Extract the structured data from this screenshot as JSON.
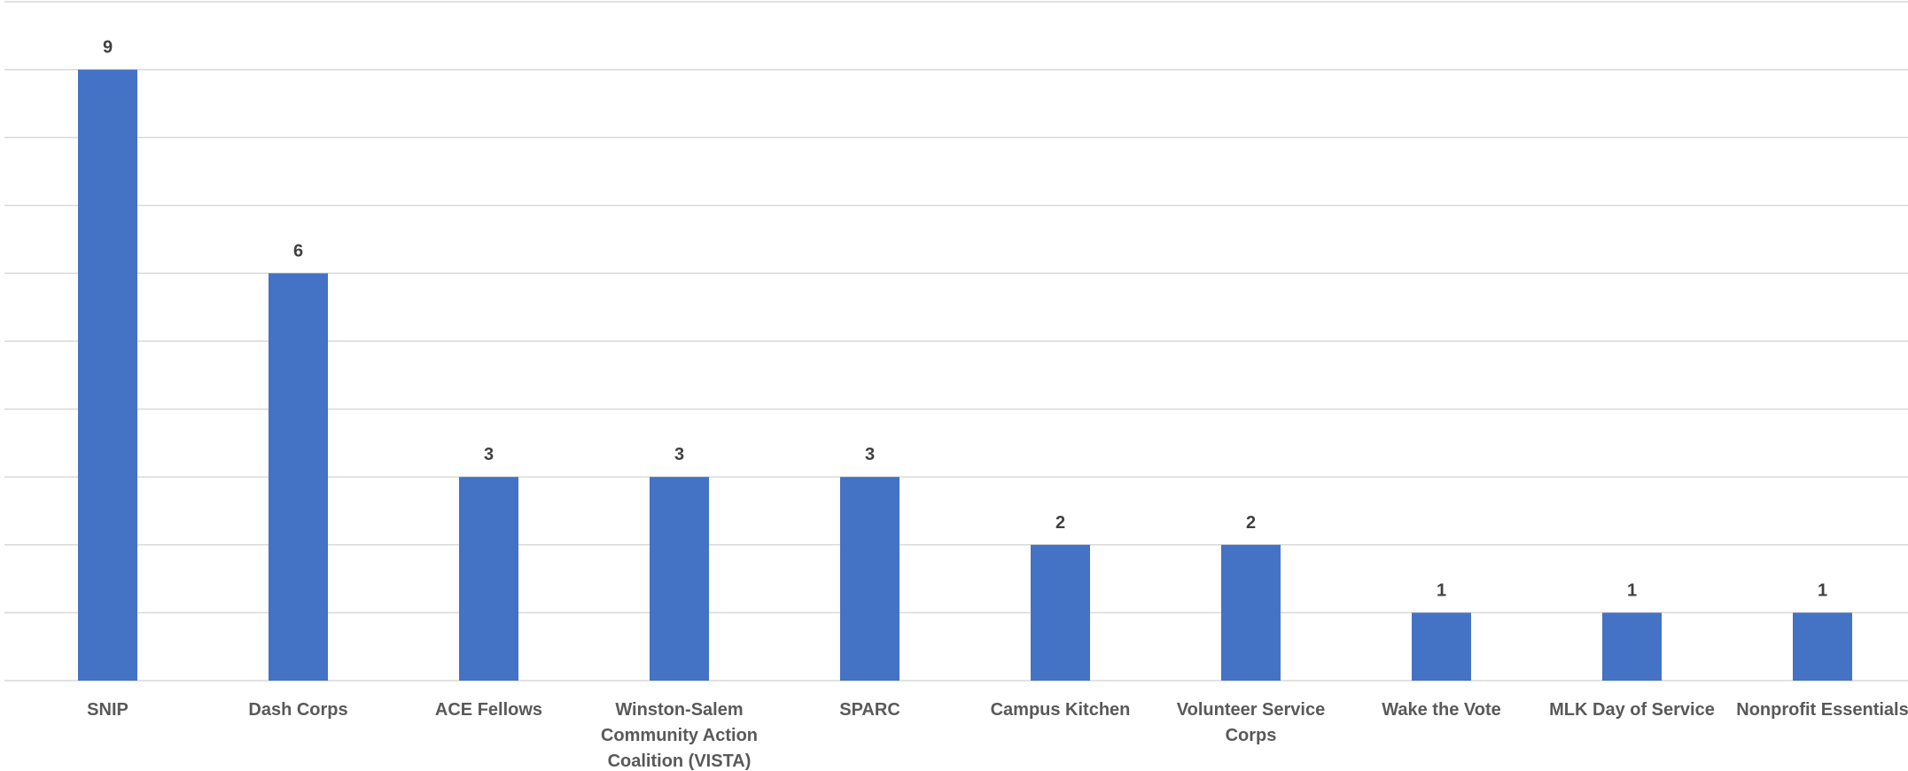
{
  "chart_data": {
    "type": "bar",
    "title": "",
    "xlabel": "",
    "ylabel": "",
    "categories": [
      [
        "SNIP"
      ],
      [
        "Dash Corps"
      ],
      [
        "ACE Fellows"
      ],
      [
        "Winston-Salem",
        "Community Action",
        "Coalition (VISTA)"
      ],
      [
        "SPARC"
      ],
      [
        "Campus Kitchen"
      ],
      [
        "Volunteer Service",
        "Corps"
      ],
      [
        "Wake the Vote"
      ],
      [
        "MLK Day of Service"
      ],
      [
        "Nonprofit Essentials"
      ]
    ],
    "values": [
      9,
      6,
      3,
      3,
      3,
      2,
      2,
      1,
      1,
      1
    ],
    "ylim": [
      0,
      10
    ],
    "grid": true,
    "data_labels": true,
    "legend": "none",
    "colors": {
      "bar": "#4472c4",
      "grid": "#d9d9d9",
      "data_label": "#404040",
      "category_label": "#595959"
    }
  }
}
